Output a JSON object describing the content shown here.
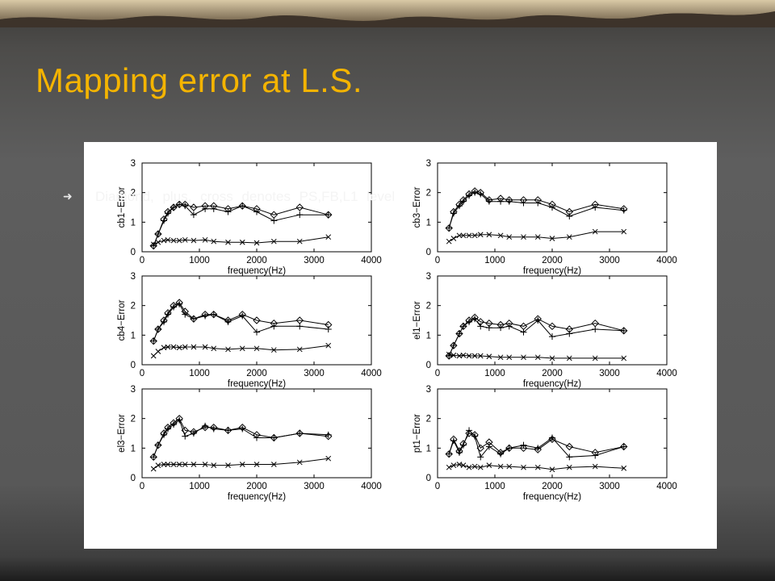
{
  "slide": {
    "title": "Mapping error at L.S.",
    "bullet": "Diamond, plus, cross denotes PS,FB,L1 level",
    "bullet_icon": "arrow-bullet-icon"
  },
  "chart_data": [
    {
      "type": "line",
      "ylabel": "cb1−Error",
      "xlabel": "frequency(Hz)",
      "xlim": [
        0,
        4000
      ],
      "ylim": [
        0,
        3
      ],
      "xticks": [
        0,
        1000,
        2000,
        3000,
        4000
      ],
      "yticks": [
        0,
        1,
        2,
        3
      ],
      "x": [
        200,
        280,
        380,
        450,
        550,
        650,
        750,
        900,
        1100,
        1250,
        1500,
        1750,
        2000,
        2300,
        2750,
        3250
      ],
      "series": [
        {
          "marker": "diamond",
          "values": [
            0.2,
            0.6,
            1.1,
            1.35,
            1.5,
            1.6,
            1.6,
            1.5,
            1.55,
            1.55,
            1.45,
            1.55,
            1.45,
            1.25,
            1.5,
            1.25
          ]
        },
        {
          "marker": "plus",
          "values": [
            0.2,
            0.6,
            1.05,
            1.3,
            1.5,
            1.6,
            1.55,
            1.25,
            1.45,
            1.45,
            1.35,
            1.55,
            1.35,
            1.05,
            1.25,
            1.25
          ]
        },
        {
          "marker": "cross",
          "values": [
            0.25,
            0.32,
            0.38,
            0.4,
            0.38,
            0.38,
            0.4,
            0.38,
            0.4,
            0.35,
            0.32,
            0.32,
            0.3,
            0.35,
            0.35,
            0.5
          ]
        }
      ]
    },
    {
      "type": "line",
      "ylabel": "cb3−Error",
      "xlabel": "frequency(Hz)",
      "xlim": [
        0,
        4000
      ],
      "ylim": [
        0,
        3
      ],
      "xticks": [
        0,
        1000,
        2000,
        3000,
        4000
      ],
      "yticks": [
        0,
        1,
        2,
        3
      ],
      "x": [
        200,
        280,
        380,
        450,
        550,
        650,
        750,
        900,
        1100,
        1250,
        1500,
        1750,
        2000,
        2300,
        2750,
        3250
      ],
      "series": [
        {
          "marker": "diamond",
          "values": [
            0.8,
            1.35,
            1.6,
            1.75,
            1.95,
            2.05,
            2.0,
            1.75,
            1.8,
            1.75,
            1.75,
            1.75,
            1.6,
            1.35,
            1.6,
            1.45
          ]
        },
        {
          "marker": "plus",
          "values": [
            0.8,
            1.3,
            1.55,
            1.7,
            1.9,
            2.0,
            1.95,
            1.7,
            1.7,
            1.7,
            1.65,
            1.65,
            1.5,
            1.2,
            1.5,
            1.4
          ]
        },
        {
          "marker": "cross",
          "values": [
            0.35,
            0.45,
            0.55,
            0.55,
            0.55,
            0.55,
            0.58,
            0.58,
            0.55,
            0.5,
            0.5,
            0.5,
            0.45,
            0.5,
            0.68,
            0.68
          ]
        }
      ]
    },
    {
      "type": "line",
      "ylabel": "cb4−Error",
      "xlabel": "frequency(Hz)",
      "xlim": [
        0,
        4000
      ],
      "ylim": [
        0,
        3
      ],
      "xticks": [
        0,
        1000,
        2000,
        3000,
        4000
      ],
      "yticks": [
        0,
        1,
        2,
        3
      ],
      "x": [
        200,
        280,
        380,
        450,
        550,
        650,
        750,
        900,
        1100,
        1250,
        1500,
        1750,
        2000,
        2300,
        2750,
        3250
      ],
      "series": [
        {
          "marker": "diamond",
          "values": [
            0.8,
            1.2,
            1.5,
            1.75,
            2.0,
            2.1,
            1.8,
            1.55,
            1.7,
            1.7,
            1.5,
            1.7,
            1.5,
            1.4,
            1.5,
            1.35
          ]
        },
        {
          "marker": "plus",
          "values": [
            0.8,
            1.2,
            1.45,
            1.7,
            1.95,
            2.05,
            1.7,
            1.55,
            1.65,
            1.7,
            1.45,
            1.65,
            1.1,
            1.3,
            1.3,
            1.2
          ]
        },
        {
          "marker": "cross",
          "values": [
            0.3,
            0.45,
            0.58,
            0.6,
            0.6,
            0.58,
            0.6,
            0.6,
            0.6,
            0.55,
            0.52,
            0.55,
            0.55,
            0.5,
            0.52,
            0.65
          ]
        }
      ]
    },
    {
      "type": "line",
      "ylabel": "el1−Error",
      "xlabel": "frequency(Hz)",
      "xlim": [
        0,
        4000
      ],
      "ylim": [
        0,
        3
      ],
      "xticks": [
        0,
        1000,
        2000,
        3000,
        4000
      ],
      "yticks": [
        0,
        1,
        2,
        3
      ],
      "x": [
        200,
        280,
        380,
        450,
        550,
        650,
        750,
        900,
        1100,
        1250,
        1500,
        1750,
        2000,
        2300,
        2750,
        3250
      ],
      "series": [
        {
          "marker": "diamond",
          "values": [
            0.3,
            0.65,
            1.05,
            1.3,
            1.5,
            1.6,
            1.45,
            1.4,
            1.35,
            1.4,
            1.3,
            1.55,
            1.3,
            1.2,
            1.4,
            1.15
          ]
        },
        {
          "marker": "plus",
          "values": [
            0.3,
            0.65,
            1.05,
            1.3,
            1.45,
            1.55,
            1.3,
            1.25,
            1.25,
            1.3,
            1.1,
            1.5,
            0.95,
            1.05,
            1.2,
            1.15
          ]
        },
        {
          "marker": "cross",
          "values": [
            0.35,
            0.32,
            0.3,
            0.32,
            0.3,
            0.3,
            0.3,
            0.28,
            0.25,
            0.25,
            0.25,
            0.25,
            0.22,
            0.22,
            0.22,
            0.22
          ]
        }
      ]
    },
    {
      "type": "line",
      "ylabel": "el3−Error",
      "xlabel": "frequency(Hz)",
      "xlim": [
        0,
        4000
      ],
      "ylim": [
        0,
        3
      ],
      "xticks": [
        0,
        1000,
        2000,
        3000,
        4000
      ],
      "yticks": [
        0,
        1,
        2,
        3
      ],
      "x": [
        200,
        280,
        380,
        450,
        550,
        650,
        750,
        900,
        1100,
        1250,
        1500,
        1750,
        2000,
        2300,
        2750,
        3250
      ],
      "series": [
        {
          "marker": "diamond",
          "values": [
            0.7,
            1.1,
            1.5,
            1.7,
            1.85,
            2.0,
            1.6,
            1.55,
            1.7,
            1.7,
            1.6,
            1.7,
            1.45,
            1.35,
            1.5,
            1.4
          ]
        },
        {
          "marker": "plus",
          "values": [
            0.7,
            1.1,
            1.45,
            1.65,
            1.8,
            1.95,
            1.4,
            1.5,
            1.75,
            1.65,
            1.6,
            1.65,
            1.35,
            1.35,
            1.5,
            1.45
          ]
        },
        {
          "marker": "cross",
          "values": [
            0.3,
            0.42,
            0.45,
            0.45,
            0.45,
            0.45,
            0.45,
            0.45,
            0.45,
            0.42,
            0.42,
            0.45,
            0.45,
            0.45,
            0.52,
            0.65
          ]
        }
      ]
    },
    {
      "type": "line",
      "ylabel": "pt1−Error",
      "xlabel": "frequency(Hz)",
      "xlim": [
        0,
        4000
      ],
      "ylim": [
        0,
        3
      ],
      "xticks": [
        0,
        1000,
        2000,
        3000,
        4000
      ],
      "yticks": [
        0,
        1,
        2,
        3
      ],
      "x": [
        200,
        280,
        380,
        450,
        550,
        650,
        750,
        900,
        1100,
        1250,
        1500,
        1750,
        2000,
        2300,
        2750,
        3250
      ],
      "series": [
        {
          "marker": "diamond",
          "values": [
            0.8,
            1.3,
            0.9,
            1.15,
            1.5,
            1.45,
            1.0,
            1.2,
            0.85,
            1.0,
            1.0,
            0.95,
            1.3,
            1.05,
            0.85,
            1.05
          ]
        },
        {
          "marker": "plus",
          "values": [
            0.8,
            1.25,
            0.85,
            1.1,
            1.6,
            1.4,
            0.7,
            1.05,
            0.8,
            1.0,
            1.1,
            1.0,
            1.35,
            0.7,
            0.75,
            1.05
          ]
        },
        {
          "marker": "cross",
          "values": [
            0.35,
            0.42,
            0.45,
            0.42,
            0.35,
            0.38,
            0.35,
            0.42,
            0.38,
            0.38,
            0.35,
            0.35,
            0.28,
            0.35,
            0.38,
            0.32
          ]
        }
      ]
    }
  ]
}
